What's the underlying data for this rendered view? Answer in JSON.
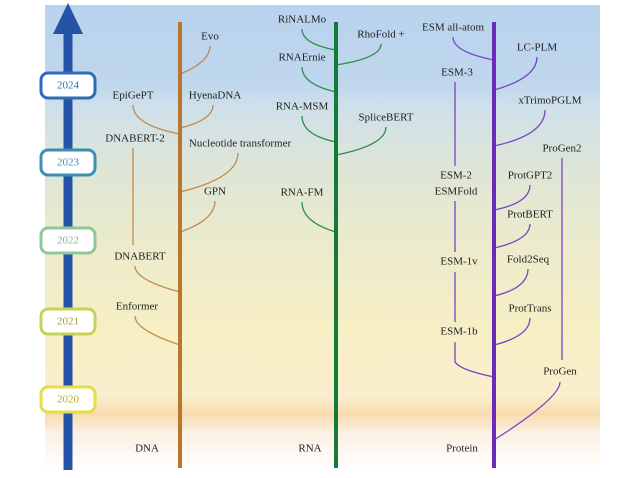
{
  "years": [
    "2024",
    "2023",
    "2022",
    "2021",
    "2020"
  ],
  "columns": [
    {
      "title": "DNA",
      "models": [
        "Evo",
        "EpiGePT",
        "HyenaDNA",
        "DNABERT-2",
        "Nucleotide transformer",
        "GPN",
        "DNABERT",
        "Enformer"
      ]
    },
    {
      "title": "RNA",
      "models": [
        "RiNALMo",
        "RhoFold +",
        "RNAErnie",
        "RNA-MSM",
        "SpliceBERT",
        "RNA-FM"
      ]
    },
    {
      "title": "Protein",
      "models": [
        "ESM all-atom",
        "LC-PLM",
        "ESM-3",
        "xTrimoPGLM",
        "ProGen2",
        "ESM-2",
        "ESMFold",
        "ProtGPT2",
        "ProtBERT",
        "ESM-1v",
        "Fold2Seq",
        "ProtTrans",
        "ESM-1b",
        "ProGen"
      ]
    }
  ]
}
